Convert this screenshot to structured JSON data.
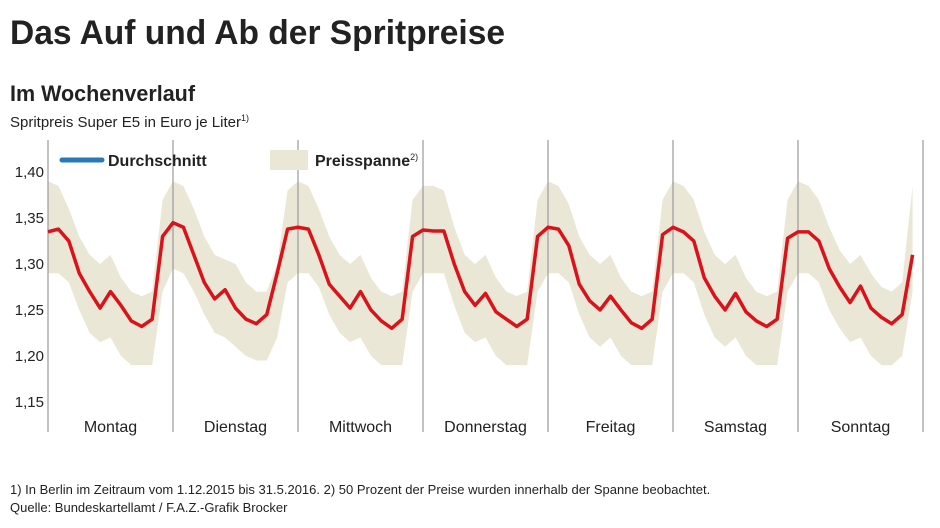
{
  "chart_data": {
    "type": "line",
    "title": "Das Auf und Ab der Spritpreise",
    "subtitle": "Im Wochenverlauf",
    "y_label": "Spritpreis Super E5 in Euro je Liter",
    "y_label_note": "1)",
    "categories": [
      null,
      null,
      null,
      null,
      null,
      null,
      "Montag",
      null,
      null,
      null,
      null,
      null,
      null,
      null,
      null,
      null,
      null,
      null,
      "Dienstag",
      null,
      null,
      null,
      null,
      null,
      null,
      null,
      null,
      null,
      null,
      null,
      "Mittwoch",
      null,
      null,
      null,
      null,
      null,
      null,
      null,
      null,
      null,
      null,
      null,
      "Donnerstag",
      null,
      null,
      null,
      null,
      null,
      null,
      null,
      null,
      null,
      null,
      null,
      "Freitag",
      null,
      null,
      null,
      null,
      null,
      null,
      null,
      null,
      null,
      null,
      null,
      "Samstag",
      null,
      null,
      null,
      null,
      null,
      null,
      null,
      null,
      null,
      null,
      null,
      "Sonntag",
      null,
      null,
      null,
      null,
      null
    ],
    "series": [
      {
        "name": "Durchschnitt",
        "color": "#d9131b",
        "legend_color": "#2a78b8",
        "values": [
          1.335,
          1.338,
          1.325,
          1.29,
          1.27,
          1.252,
          1.27,
          1.255,
          1.238,
          1.232,
          1.24,
          1.33,
          1.345,
          1.34,
          1.31,
          1.28,
          1.262,
          1.272,
          1.252,
          1.24,
          1.235,
          1.245,
          1.29,
          1.338,
          1.34,
          1.338,
          1.31,
          1.278,
          1.265,
          1.252,
          1.27,
          1.25,
          1.238,
          1.23,
          1.24,
          1.33,
          1.337,
          1.336,
          1.336,
          1.3,
          1.27,
          1.255,
          1.268,
          1.248,
          1.24,
          1.232,
          1.24,
          1.33,
          1.34,
          1.338,
          1.32,
          1.278,
          1.26,
          1.25,
          1.265,
          1.25,
          1.236,
          1.23,
          1.24,
          1.332,
          1.34,
          1.335,
          1.325,
          1.285,
          1.265,
          1.25,
          1.268,
          1.248,
          1.238,
          1.232,
          1.24,
          1.328,
          1.335,
          1.335,
          1.325,
          1.295,
          1.275,
          1.258,
          1.276,
          1.252,
          1.242,
          1.235,
          1.245,
          1.31
        ]
      }
    ],
    "range": {
      "name": "Preisspanne",
      "name_note": "2)",
      "color": "#ebe7d6",
      "high": [
        1.39,
        1.385,
        1.36,
        1.33,
        1.31,
        1.3,
        1.31,
        1.285,
        1.27,
        1.265,
        1.27,
        1.37,
        1.39,
        1.385,
        1.36,
        1.33,
        1.31,
        1.305,
        1.3,
        1.28,
        1.27,
        1.27,
        1.3,
        1.38,
        1.39,
        1.385,
        1.36,
        1.33,
        1.31,
        1.3,
        1.31,
        1.285,
        1.27,
        1.265,
        1.27,
        1.37,
        1.385,
        1.385,
        1.38,
        1.34,
        1.31,
        1.3,
        1.31,
        1.285,
        1.27,
        1.265,
        1.27,
        1.37,
        1.39,
        1.385,
        1.365,
        1.33,
        1.31,
        1.3,
        1.31,
        1.285,
        1.27,
        1.265,
        1.27,
        1.37,
        1.39,
        1.385,
        1.37,
        1.335,
        1.31,
        1.3,
        1.31,
        1.285,
        1.27,
        1.265,
        1.27,
        1.37,
        1.39,
        1.385,
        1.37,
        1.34,
        1.315,
        1.3,
        1.31,
        1.29,
        1.275,
        1.27,
        1.28,
        1.385
      ],
      "low": [
        1.29,
        1.29,
        1.28,
        1.25,
        1.225,
        1.215,
        1.22,
        1.2,
        1.19,
        1.19,
        1.19,
        1.27,
        1.295,
        1.29,
        1.27,
        1.245,
        1.225,
        1.22,
        1.21,
        1.2,
        1.195,
        1.195,
        1.22,
        1.28,
        1.29,
        1.29,
        1.275,
        1.245,
        1.225,
        1.215,
        1.22,
        1.2,
        1.19,
        1.19,
        1.19,
        1.27,
        1.29,
        1.29,
        1.29,
        1.255,
        1.225,
        1.215,
        1.22,
        1.2,
        1.19,
        1.19,
        1.19,
        1.27,
        1.29,
        1.29,
        1.28,
        1.245,
        1.22,
        1.21,
        1.22,
        1.2,
        1.19,
        1.19,
        1.19,
        1.27,
        1.29,
        1.29,
        1.28,
        1.245,
        1.22,
        1.21,
        1.22,
        1.2,
        1.19,
        1.19,
        1.19,
        1.27,
        1.29,
        1.29,
        1.28,
        1.25,
        1.23,
        1.215,
        1.22,
        1.2,
        1.19,
        1.19,
        1.2,
        1.27
      ]
    },
    "ylim": [
      1.14,
      1.435
    ],
    "yticks": [
      {
        "value": 1.15,
        "label": "1,15"
      },
      {
        "value": 1.2,
        "label": "1,20"
      },
      {
        "value": 1.25,
        "label": "1,25"
      },
      {
        "value": 1.3,
        "label": "1,30"
      },
      {
        "value": 1.35,
        "label": "1,35"
      },
      {
        "value": 1.4,
        "label": "1,40"
      }
    ],
    "grid": false,
    "footnotes": [
      "1) In Berlin im Zeitraum vom 1.12.2015 bis 31.5.2016. 2) 50 Prozent der Preise wurden innerhalb der Spanne beobachtet.",
      "Quelle: Bundeskartellamt / F.A.Z.-Grafik Brocker"
    ]
  }
}
